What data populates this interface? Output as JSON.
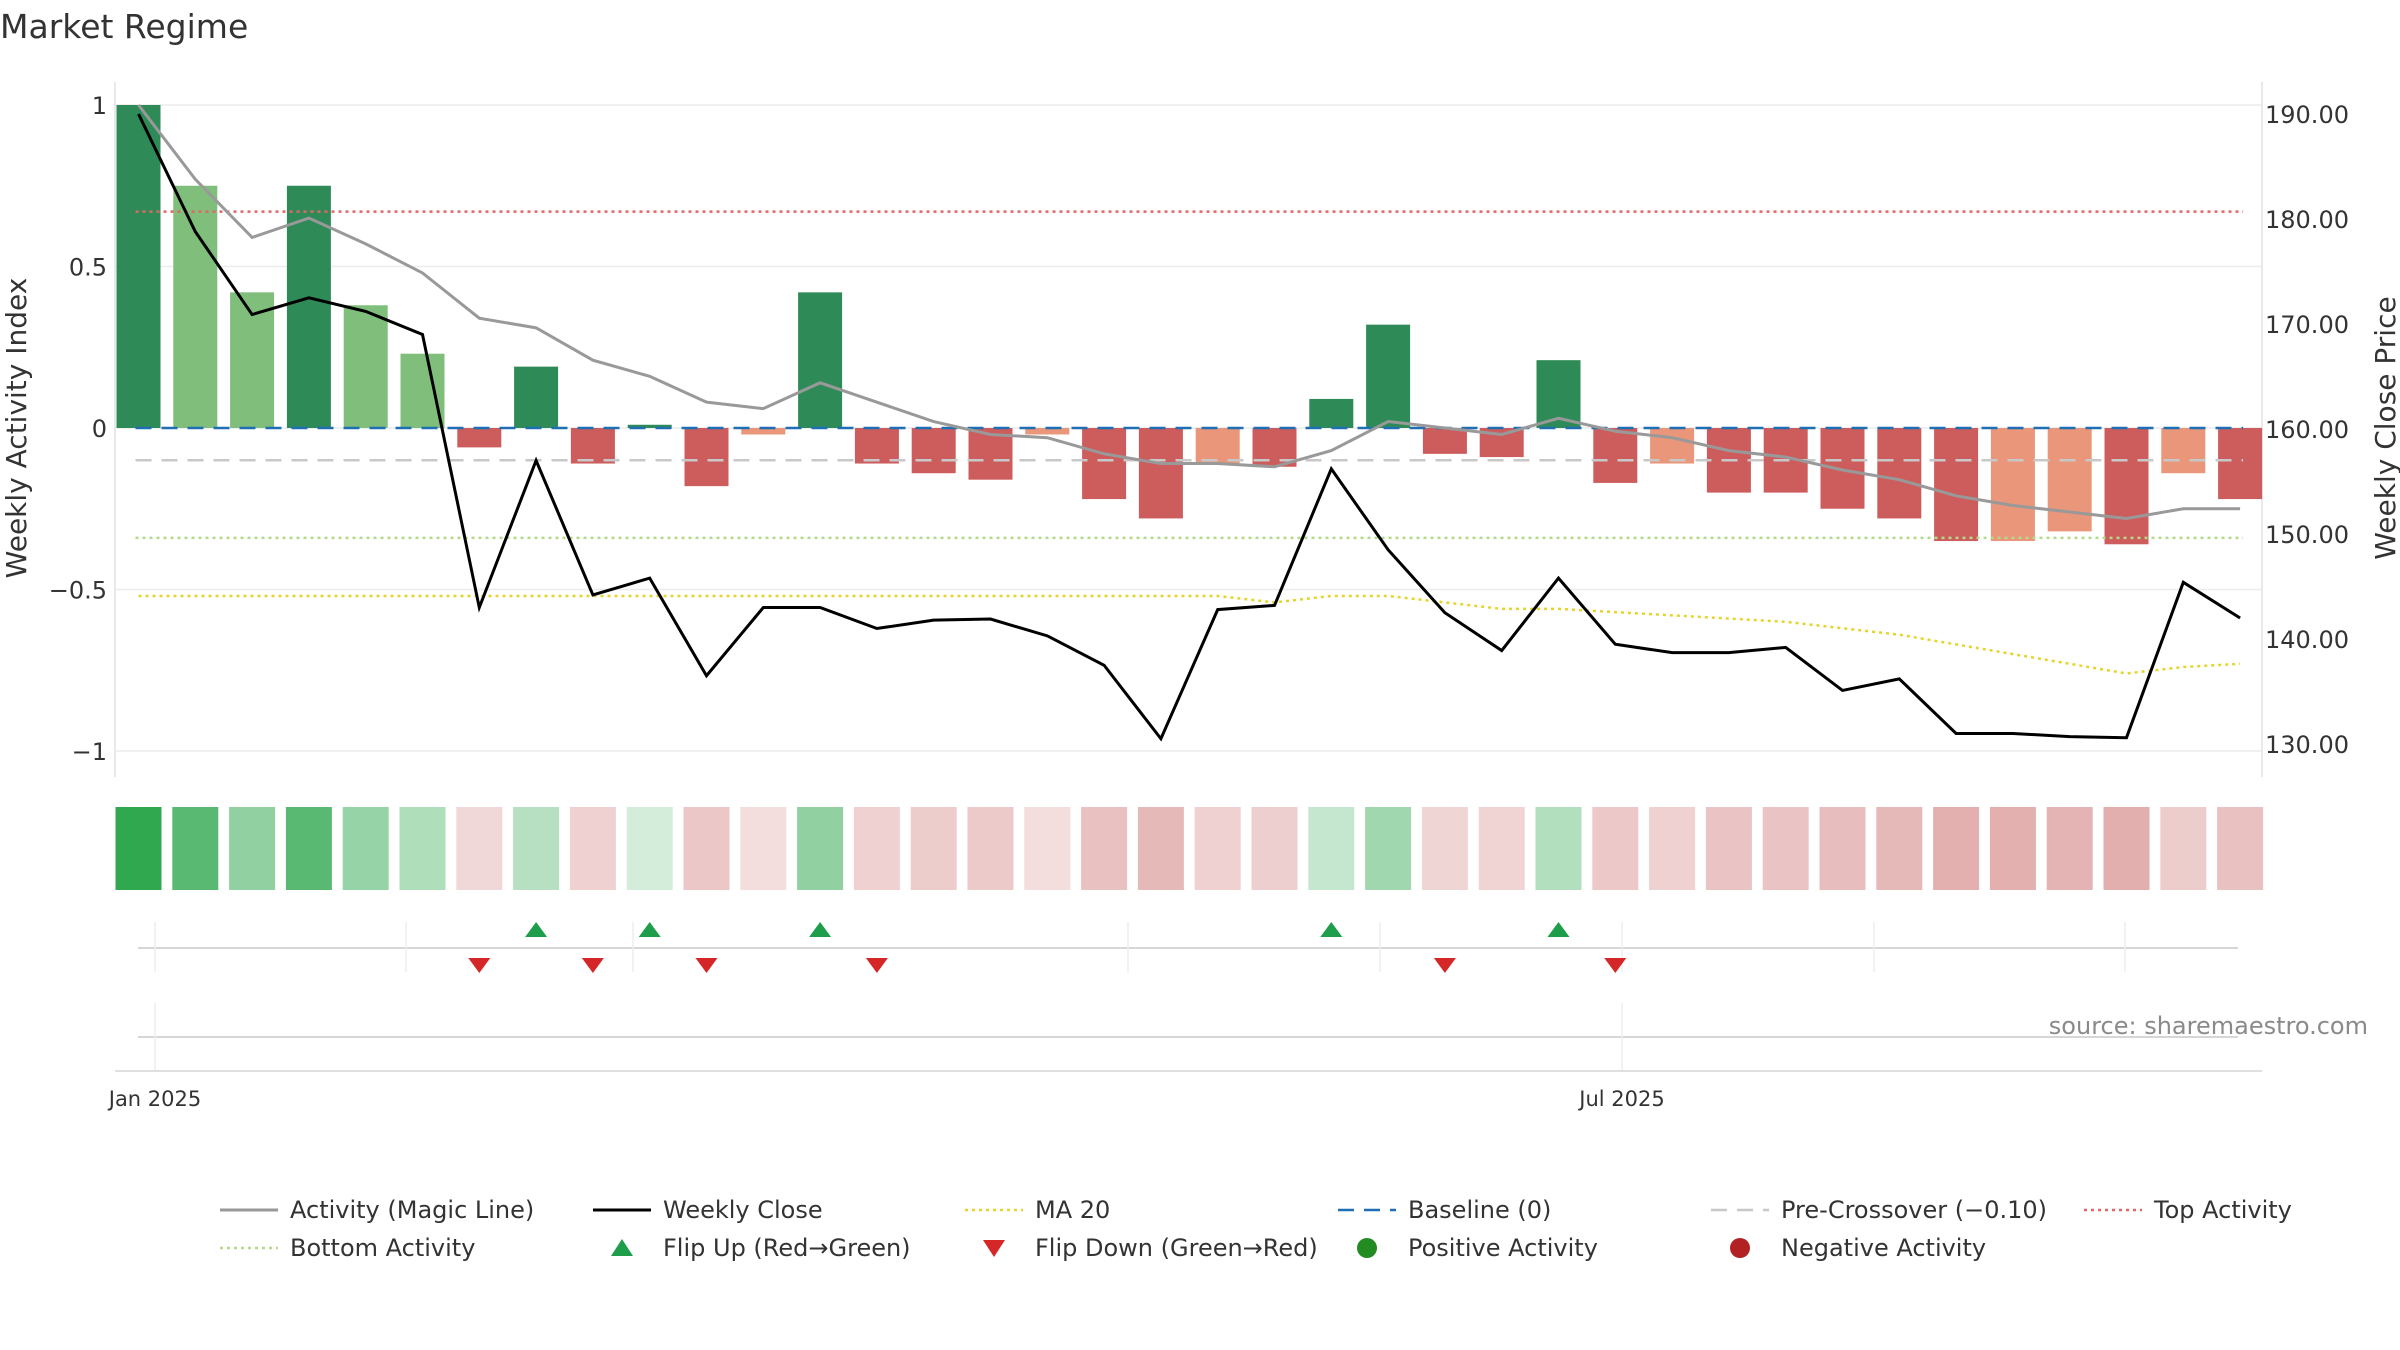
{
  "title": "Market Regime",
  "source": "source: sharemaestro.com",
  "colors": {
    "strong_green": "#2e8b57",
    "light_green": "#7fbf7b",
    "strong_red": "#cd5c5c",
    "light_red": "#e9967a",
    "magic_line": "#999999",
    "close_line": "#000000",
    "ma20": "#e6d42a",
    "baseline": "#1f6fb4",
    "pre_crossover": "#c8c8c8",
    "top_activity": "#e06666",
    "bottom_activity": "#b5d98a",
    "flip_up": "#1e9e4a",
    "flip_down": "#d62728",
    "positive": "#228b22",
    "negative": "#b22222"
  },
  "chart_data": {
    "type": "bar",
    "title": "Market Regime",
    "x_ticks": [
      "Jan 2025",
      "Jul 2025"
    ],
    "y_left": {
      "label": "Weekly Activity Index",
      "ticks": [
        "1",
        "0.5",
        "0",
        "−0.5",
        "−1"
      ],
      "range": [
        -1,
        1
      ]
    },
    "y_right": {
      "label": "Weekly Close Price",
      "ticks": [
        "190.00",
        "180.00",
        "170.00",
        "160.00",
        "150.00",
        "140.00",
        "130.00"
      ],
      "range": [
        130,
        190
      ]
    },
    "activity": [
      1.0,
      0.75,
      0.42,
      0.75,
      0.38,
      0.23,
      -0.06,
      0.19,
      -0.11,
      0.01,
      -0.18,
      -0.02,
      0.42,
      -0.11,
      -0.14,
      -0.16,
      -0.02,
      -0.22,
      -0.28,
      -0.11,
      -0.12,
      0.09,
      0.32,
      -0.08,
      -0.09,
      0.21,
      -0.17,
      -0.11,
      -0.2,
      -0.2,
      -0.25,
      -0.28,
      -0.35,
      -0.35,
      -0.32,
      -0.36,
      -0.14,
      -0.22
    ],
    "bar_strength": [
      "strong",
      "light",
      "light",
      "strong",
      "light",
      "light",
      "strong",
      "strong",
      "strong",
      "strong",
      "strong",
      "light",
      "strong",
      "strong",
      "strong",
      "strong",
      "light",
      "strong",
      "strong",
      "light",
      "strong",
      "strong",
      "strong",
      "strong",
      "strong",
      "strong",
      "strong",
      "light",
      "strong",
      "strong",
      "strong",
      "strong",
      "strong",
      "light",
      "light",
      "strong",
      "light",
      "strong"
    ],
    "magic_line": [
      1.0,
      0.77,
      0.59,
      0.65,
      0.57,
      0.48,
      0.34,
      0.31,
      0.21,
      0.16,
      0.08,
      0.06,
      0.14,
      0.08,
      0.02,
      -0.02,
      -0.03,
      -0.08,
      -0.11,
      -0.11,
      -0.12,
      -0.07,
      0.02,
      0.0,
      -0.02,
      0.03,
      -0.01,
      -0.03,
      -0.07,
      -0.09,
      -0.13,
      -0.16,
      -0.21,
      -0.24,
      -0.26,
      -0.28,
      -0.25,
      -0.25
    ],
    "weekly_close": [
      190.0,
      178.8,
      170.9,
      172.5,
      171.2,
      169.0,
      143.0,
      157.0,
      144.2,
      145.8,
      136.5,
      143.0,
      143.0,
      141.0,
      141.8,
      141.9,
      140.3,
      137.5,
      130.5,
      142.8,
      143.2,
      156.2,
      148.5,
      142.5,
      138.9,
      145.8,
      139.5,
      138.7,
      138.7,
      139.2,
      135.1,
      136.2,
      131.0,
      131.0,
      130.7,
      130.6,
      145.4,
      142.0
    ],
    "ma20": [
      -0.52,
      -0.52,
      -0.52,
      -0.52,
      -0.52,
      -0.52,
      -0.52,
      -0.52,
      -0.52,
      -0.52,
      -0.52,
      -0.52,
      -0.52,
      -0.52,
      -0.52,
      -0.52,
      -0.52,
      -0.52,
      -0.52,
      -0.52,
      -0.54,
      -0.52,
      -0.52,
      -0.54,
      -0.56,
      -0.56,
      -0.57,
      -0.58,
      -0.59,
      -0.6,
      -0.62,
      -0.64,
      -0.67,
      -0.7,
      -0.73,
      -0.76,
      -0.74,
      -0.73
    ],
    "baseline": 0,
    "pre_crossover": -0.1,
    "top_activity": 0.67,
    "bottom_activity": -0.34,
    "regime_strip": [
      1.0,
      0.75,
      0.42,
      0.75,
      0.38,
      0.23,
      -0.06,
      0.19,
      -0.11,
      0.01,
      -0.18,
      -0.02,
      0.42,
      -0.11,
      -0.14,
      -0.16,
      -0.02,
      -0.22,
      -0.28,
      -0.11,
      -0.12,
      0.09,
      0.32,
      -0.08,
      -0.09,
      0.21,
      -0.17,
      -0.11,
      -0.2,
      -0.2,
      -0.25,
      -0.28,
      -0.35,
      -0.35,
      -0.32,
      -0.36,
      -0.14,
      -0.22
    ],
    "flip_up_weeks": [
      7,
      9,
      12,
      21,
      25
    ],
    "flip_down_weeks": [
      6,
      8,
      10,
      13,
      23,
      26
    ],
    "legend": [
      {
        "label": "Activity (Magic Line)",
        "style": "line-grey"
      },
      {
        "label": "Weekly Close",
        "style": "line-black"
      },
      {
        "label": "MA 20",
        "style": "dotted-yellow"
      },
      {
        "label": "Baseline (0)",
        "style": "dashed-blue"
      },
      {
        "label": "Pre-Crossover (−0.10)",
        "style": "dashed-grey"
      },
      {
        "label": "Top Activity",
        "style": "dotted-red"
      },
      {
        "label": "Bottom Activity",
        "style": "dotted-green"
      },
      {
        "label": "Flip Up (Red→Green)",
        "style": "triangle-up"
      },
      {
        "label": "Flip Down (Green→Red)",
        "style": "triangle-down"
      },
      {
        "label": "Positive Activity",
        "style": "dot-green"
      },
      {
        "label": "Negative Activity",
        "style": "dot-red"
      }
    ]
  }
}
